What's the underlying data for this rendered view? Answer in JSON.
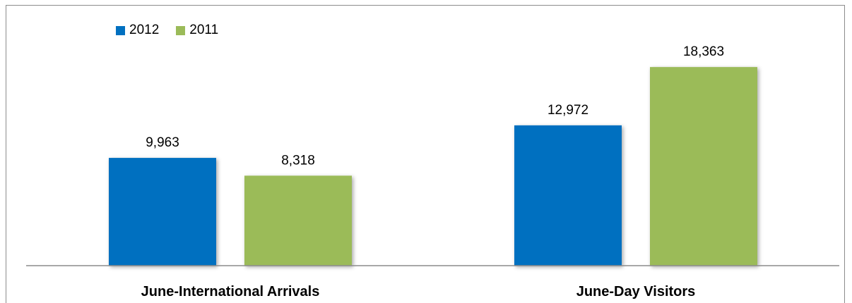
{
  "chart_data": {
    "type": "bar",
    "categories": [
      "June-International Arrivals",
      "June-Day Visitors"
    ],
    "series": [
      {
        "name": "2012",
        "color": "#0070c0",
        "values": [
          9963,
          12972
        ],
        "labels": [
          "9,963",
          "12,972"
        ]
      },
      {
        "name": "2011",
        "color": "#9bbb59",
        "values": [
          8318,
          18363
        ],
        "labels": [
          "8,318",
          "18,363"
        ]
      }
    ],
    "ylim": [
      0,
      21500
    ],
    "grid": false,
    "legend_position": "top-left"
  }
}
